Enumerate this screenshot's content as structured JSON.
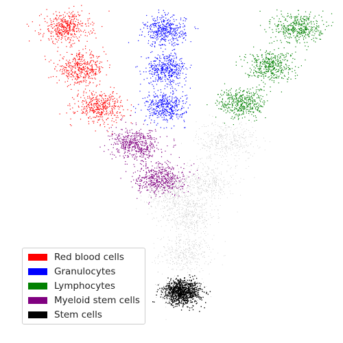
{
  "chart_data": {
    "type": "scatter",
    "title": "",
    "xlabel": "",
    "ylabel": "",
    "axes_visible": false,
    "grid": false,
    "legend_placement": "lower-left",
    "xlim": [
      0,
      10
    ],
    "ylim": [
      0,
      10
    ],
    "background_series": {
      "name": "",
      "color": "#bdbdbd"
    },
    "series": [
      {
        "name": "Red blood cells",
        "color": "#ff0000",
        "clusters": [
          {
            "x": 1.9,
            "y": 9.2
          },
          {
            "x": 2.35,
            "y": 8.0
          },
          {
            "x": 2.9,
            "y": 6.9
          }
        ]
      },
      {
        "name": "Granulocytes",
        "color": "#0000ff",
        "clusters": [
          {
            "x": 4.8,
            "y": 9.1
          },
          {
            "x": 4.85,
            "y": 8.0
          },
          {
            "x": 4.8,
            "y": 6.9
          }
        ]
      },
      {
        "name": "Lymphocytes",
        "color": "#008000",
        "clusters": [
          {
            "x": 8.7,
            "y": 9.2
          },
          {
            "x": 7.85,
            "y": 8.1
          },
          {
            "x": 7.05,
            "y": 7.0
          }
        ]
      },
      {
        "name": "Myeloid stem cells",
        "color": "#800080",
        "clusters": [
          {
            "x": 3.95,
            "y": 5.8
          },
          {
            "x": 4.65,
            "y": 4.8
          }
        ]
      },
      {
        "name": "Stem cells",
        "color": "#000000",
        "clusters": [
          {
            "x": 5.3,
            "y": 1.5
          }
        ]
      }
    ]
  }
}
